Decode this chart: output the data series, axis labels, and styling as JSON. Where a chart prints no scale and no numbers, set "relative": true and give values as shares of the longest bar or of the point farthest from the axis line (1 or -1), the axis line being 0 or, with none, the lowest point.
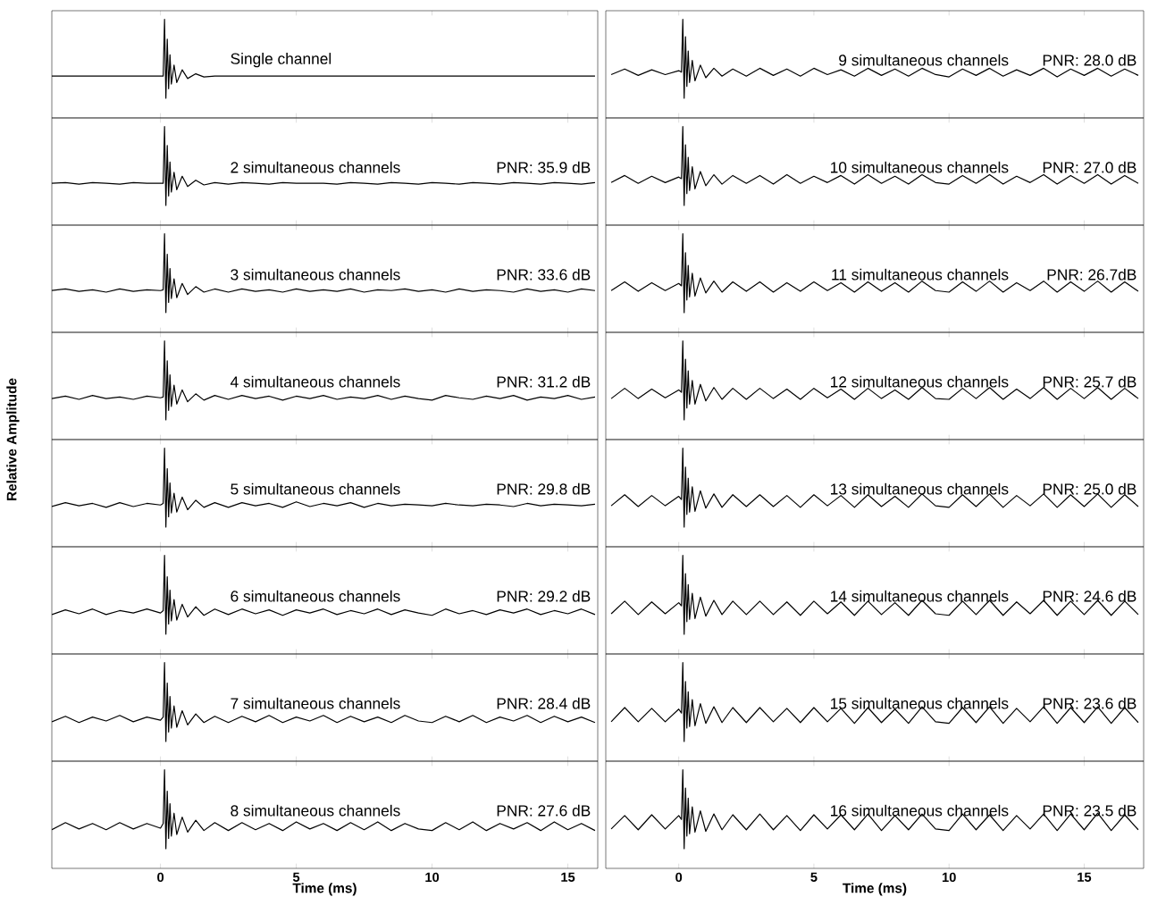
{
  "chart_data": [
    {
      "type": "line",
      "relative": true,
      "color": "#000000",
      "tick_labels": false,
      "xlim": [
        -4,
        16.1
      ],
      "xticks": [
        0,
        5,
        10,
        15
      ],
      "annotations": [
        "Single channel"
      ],
      "x": [
        -4,
        -3.5,
        -3,
        -2.5,
        -2,
        -1.5,
        -1,
        -0.5,
        0,
        0.1,
        0.15,
        0.2,
        0.25,
        0.3,
        0.35,
        0.4,
        0.5,
        0.6,
        0.8,
        1,
        1.3,
        1.6,
        2,
        2.5,
        3,
        3.5,
        4,
        4.5,
        5,
        5.5,
        6,
        6.5,
        7,
        7.5,
        8,
        8.5,
        9,
        9.5,
        10,
        10.5,
        11,
        11.5,
        12,
        12.5,
        13,
        13.5,
        14,
        14.5,
        15,
        15.5,
        16
      ],
      "values": [
        0.28,
        0.28,
        0.28,
        0.28,
        0.28,
        0.28,
        0.28,
        0.28,
        0.28,
        0.28,
        1,
        0,
        0.75,
        0.12,
        0.55,
        0.18,
        0.42,
        0.2,
        0.36,
        0.25,
        0.31,
        0.27,
        0.28,
        0.28,
        0.28,
        0.28,
        0.28,
        0.28,
        0.28,
        0.28,
        0.28,
        0.28,
        0.28,
        0.28,
        0.28,
        0.28,
        0.28,
        0.28,
        0.28,
        0.28,
        0.28,
        0.28,
        0.28,
        0.28,
        0.28,
        0.28,
        0.28,
        0.28,
        0.28,
        0.28,
        0.28
      ]
    },
    {
      "type": "line",
      "relative": true,
      "color": "#000000",
      "tick_labels": false,
      "xlim": [
        -4,
        16.1
      ],
      "xticks": [
        0,
        5,
        10,
        15
      ],
      "annotations": [
        "2 simultaneous channels",
        "PNR: 35.9 dB"
      ],
      "x": [
        -4,
        -3.5,
        -3,
        -2.5,
        -2,
        -1.5,
        -1,
        -0.5,
        0,
        0.1,
        0.15,
        0.2,
        0.25,
        0.3,
        0.35,
        0.4,
        0.5,
        0.6,
        0.8,
        1,
        1.3,
        1.6,
        2,
        2.5,
        3,
        3.5,
        4,
        4.5,
        5,
        5.5,
        6,
        6.5,
        7,
        7.5,
        8,
        8.5,
        9,
        9.5,
        10,
        10.5,
        11,
        11.5,
        12,
        12.5,
        13,
        13.5,
        14,
        14.5,
        15,
        15.5,
        16
      ],
      "values": [
        0.28,
        0.29,
        0.27,
        0.29,
        0.28,
        0.27,
        0.29,
        0.28,
        0.28,
        0.28,
        1,
        0,
        0.76,
        0.12,
        0.55,
        0.17,
        0.42,
        0.2,
        0.37,
        0.24,
        0.32,
        0.26,
        0.29,
        0.27,
        0.29,
        0.28,
        0.27,
        0.29,
        0.28,
        0.28,
        0.28,
        0.27,
        0.29,
        0.28,
        0.27,
        0.29,
        0.28,
        0.27,
        0.29,
        0.28,
        0.27,
        0.29,
        0.28,
        0.27,
        0.29,
        0.28,
        0.27,
        0.29,
        0.28,
        0.27,
        0.29
      ]
    },
    {
      "type": "line",
      "relative": true,
      "color": "#000000",
      "tick_labels": false,
      "xlim": [
        -4,
        16.1
      ],
      "xticks": [
        0,
        5,
        10,
        15
      ],
      "annotations": [
        "3 simultaneous channels",
        "PNR: 33.6 dB"
      ],
      "x": [
        -4,
        -3.5,
        -3,
        -2.5,
        -2,
        -1.5,
        -1,
        -0.5,
        0,
        0.1,
        0.15,
        0.2,
        0.25,
        0.3,
        0.35,
        0.4,
        0.5,
        0.6,
        0.8,
        1,
        1.3,
        1.6,
        2,
        2.5,
        3,
        3.5,
        4,
        4.5,
        5,
        5.5,
        6,
        6.5,
        7,
        7.5,
        8,
        8.5,
        9,
        9.5,
        10,
        10.5,
        11,
        11.5,
        12,
        12.5,
        13,
        13.5,
        14,
        14.5,
        15,
        15.5,
        16
      ],
      "values": [
        0.28,
        0.3,
        0.27,
        0.29,
        0.26,
        0.3,
        0.27,
        0.29,
        0.28,
        0.29,
        1,
        0,
        0.74,
        0.13,
        0.56,
        0.18,
        0.43,
        0.19,
        0.37,
        0.23,
        0.33,
        0.26,
        0.3,
        0.26,
        0.3,
        0.27,
        0.29,
        0.26,
        0.3,
        0.27,
        0.29,
        0.27,
        0.3,
        0.26,
        0.29,
        0.28,
        0.3,
        0.27,
        0.29,
        0.26,
        0.3,
        0.27,
        0.29,
        0.28,
        0.26,
        0.3,
        0.27,
        0.29,
        0.26,
        0.3,
        0.28
      ]
    },
    {
      "type": "line",
      "relative": true,
      "color": "#000000",
      "tick_labels": false,
      "xlim": [
        -4,
        16.1
      ],
      "xticks": [
        0,
        5,
        10,
        15
      ],
      "annotations": [
        "4 simultaneous channels",
        "PNR: 31.2 dB"
      ],
      "x": [
        -4,
        -3.5,
        -3,
        -2.5,
        -2,
        -1.5,
        -1,
        -0.5,
        0,
        0.1,
        0.15,
        0.2,
        0.25,
        0.3,
        0.35,
        0.4,
        0.5,
        0.6,
        0.8,
        1,
        1.3,
        1.6,
        2,
        2.5,
        3,
        3.5,
        4,
        4.5,
        5,
        5.5,
        6,
        6.5,
        7,
        7.5,
        8,
        8.5,
        9,
        9.5,
        10,
        10.5,
        11,
        11.5,
        12,
        12.5,
        13,
        13.5,
        14,
        14.5,
        15,
        15.5,
        16
      ],
      "values": [
        0.27,
        0.3,
        0.26,
        0.31,
        0.27,
        0.29,
        0.26,
        0.3,
        0.28,
        0.29,
        1,
        0,
        0.75,
        0.12,
        0.57,
        0.17,
        0.44,
        0.2,
        0.38,
        0.23,
        0.33,
        0.25,
        0.31,
        0.26,
        0.31,
        0.27,
        0.3,
        0.25,
        0.3,
        0.27,
        0.31,
        0.26,
        0.29,
        0.27,
        0.31,
        0.26,
        0.3,
        0.27,
        0.25,
        0.31,
        0.28,
        0.26,
        0.3,
        0.27,
        0.31,
        0.25,
        0.29,
        0.27,
        0.31,
        0.26,
        0.29
      ]
    },
    {
      "type": "line",
      "relative": true,
      "color": "#000000",
      "tick_labels": false,
      "xlim": [
        -4,
        16.1
      ],
      "xticks": [
        0,
        5,
        10,
        15
      ],
      "ylabel": "Relative Amplitude",
      "annotations": [
        "5 simultaneous channels",
        "PNR: 29.8 dB"
      ],
      "x": [
        -4,
        -3.5,
        -3,
        -2.5,
        -2,
        -1.5,
        -1,
        -0.5,
        0,
        0.1,
        0.15,
        0.2,
        0.25,
        0.3,
        0.35,
        0.4,
        0.5,
        0.6,
        0.8,
        1,
        1.3,
        1.6,
        2,
        2.5,
        3,
        3.5,
        4,
        4.5,
        5,
        5.5,
        6,
        6.5,
        7,
        7.5,
        8,
        8.5,
        9,
        9.5,
        10,
        10.5,
        11,
        11.5,
        12,
        12.5,
        13,
        13.5,
        14,
        14.5,
        15,
        15.5,
        16
      ],
      "values": [
        0.26,
        0.31,
        0.27,
        0.3,
        0.25,
        0.31,
        0.26,
        0.3,
        0.28,
        0.3,
        1,
        0,
        0.74,
        0.13,
        0.56,
        0.18,
        0.43,
        0.19,
        0.38,
        0.22,
        0.34,
        0.25,
        0.31,
        0.25,
        0.31,
        0.27,
        0.3,
        0.25,
        0.32,
        0.26,
        0.3,
        0.27,
        0.31,
        0.25,
        0.3,
        0.27,
        0.29,
        0.28,
        0.27,
        0.3,
        0.28,
        0.27,
        0.29,
        0.28,
        0.26,
        0.3,
        0.27,
        0.29,
        0.28,
        0.27,
        0.29
      ]
    },
    {
      "type": "line",
      "relative": true,
      "color": "#000000",
      "tick_labels": false,
      "xlim": [
        -4,
        16.1
      ],
      "xticks": [
        0,
        5,
        10,
        15
      ],
      "annotations": [
        "6 simultaneous channels",
        "PNR: 29.2 dB"
      ],
      "x": [
        -4,
        -3.5,
        -3,
        -2.5,
        -2,
        -1.5,
        -1,
        -0.5,
        0,
        0.1,
        0.15,
        0.2,
        0.25,
        0.3,
        0.35,
        0.4,
        0.5,
        0.6,
        0.8,
        1,
        1.3,
        1.6,
        2,
        2.5,
        3,
        3.5,
        4,
        4.5,
        5,
        5.5,
        6,
        6.5,
        7,
        7.5,
        8,
        8.5,
        9,
        9.5,
        10,
        10.5,
        11,
        11.5,
        12,
        12.5,
        13,
        13.5,
        14,
        14.5,
        15,
        15.5,
        16
      ],
      "values": [
        0.25,
        0.31,
        0.26,
        0.32,
        0.25,
        0.3,
        0.27,
        0.32,
        0.27,
        0.3,
        1,
        0,
        0.73,
        0.13,
        0.56,
        0.17,
        0.44,
        0.18,
        0.38,
        0.22,
        0.35,
        0.24,
        0.32,
        0.25,
        0.32,
        0.26,
        0.31,
        0.24,
        0.31,
        0.27,
        0.32,
        0.25,
        0.3,
        0.26,
        0.32,
        0.25,
        0.31,
        0.27,
        0.24,
        0.32,
        0.26,
        0.3,
        0.25,
        0.31,
        0.27,
        0.32,
        0.25,
        0.3,
        0.26,
        0.32,
        0.25
      ]
    },
    {
      "type": "line",
      "relative": true,
      "color": "#000000",
      "tick_labels": false,
      "xlim": [
        -4,
        16.1
      ],
      "xticks": [
        0,
        5,
        10,
        15
      ],
      "annotations": [
        "7 simultaneous channels",
        "PNR: 28.4 dB"
      ],
      "x": [
        -4,
        -3.5,
        -3,
        -2.5,
        -2,
        -1.5,
        -1,
        -0.5,
        0,
        0.1,
        0.15,
        0.2,
        0.25,
        0.3,
        0.35,
        0.4,
        0.5,
        0.6,
        0.8,
        1,
        1.3,
        1.6,
        2,
        2.5,
        3,
        3.5,
        4,
        4.5,
        5,
        5.5,
        6,
        6.5,
        7,
        7.5,
        8,
        8.5,
        9,
        9.5,
        10,
        10.5,
        11,
        11.5,
        12,
        12.5,
        13,
        13.5,
        14,
        14.5,
        15,
        15.5,
        16
      ],
      "values": [
        0.25,
        0.32,
        0.24,
        0.31,
        0.26,
        0.33,
        0.25,
        0.31,
        0.27,
        0.31,
        1,
        0,
        0.74,
        0.12,
        0.57,
        0.17,
        0.45,
        0.18,
        0.39,
        0.21,
        0.35,
        0.24,
        0.32,
        0.24,
        0.32,
        0.25,
        0.33,
        0.24,
        0.31,
        0.26,
        0.33,
        0.24,
        0.32,
        0.25,
        0.31,
        0.24,
        0.33,
        0.26,
        0.24,
        0.32,
        0.25,
        0.33,
        0.24,
        0.31,
        0.26,
        0.33,
        0.24,
        0.32,
        0.25,
        0.31,
        0.24
      ]
    },
    {
      "type": "line",
      "relative": true,
      "color": "#000000",
      "tick_labels": "x",
      "xlim": [
        -4,
        16.1
      ],
      "xticks": [
        0,
        5,
        10,
        15
      ],
      "xlabel": "Time (ms)",
      "annotations": [
        "8 simultaneous channels",
        "PNR: 27.6 dB"
      ],
      "x": [
        -4,
        -3.5,
        -3,
        -2.5,
        -2,
        -1.5,
        -1,
        -0.5,
        0,
        0.1,
        0.15,
        0.2,
        0.25,
        0.3,
        0.35,
        0.4,
        0.5,
        0.6,
        0.8,
        1,
        1.3,
        1.6,
        2,
        2.5,
        3,
        3.5,
        4,
        4.5,
        5,
        5.5,
        6,
        6.5,
        7,
        7.5,
        8,
        8.5,
        9,
        9.5,
        10,
        10.5,
        11,
        11.5,
        12,
        12.5,
        13,
        13.5,
        14,
        14.5,
        15,
        15.5,
        16
      ],
      "values": [
        0.24,
        0.33,
        0.25,
        0.32,
        0.24,
        0.33,
        0.25,
        0.32,
        0.26,
        0.32,
        1,
        0,
        0.73,
        0.13,
        0.57,
        0.16,
        0.45,
        0.18,
        0.4,
        0.21,
        0.36,
        0.23,
        0.33,
        0.23,
        0.33,
        0.24,
        0.32,
        0.23,
        0.34,
        0.25,
        0.32,
        0.23,
        0.33,
        0.24,
        0.34,
        0.23,
        0.32,
        0.25,
        0.23,
        0.33,
        0.24,
        0.34,
        0.23,
        0.32,
        0.25,
        0.33,
        0.23,
        0.34,
        0.24,
        0.32,
        0.23
      ]
    },
    {
      "type": "line",
      "relative": true,
      "color": "#000000",
      "tick_labels": false,
      "xlim": [
        -2.7,
        17.2
      ],
      "xticks": [
        0,
        5,
        10,
        15
      ],
      "annotations": [
        "9 simultaneous channels",
        "PNR: 28.0 dB"
      ],
      "x": [
        -2.5,
        -2,
        -1.5,
        -1,
        -0.5,
        0,
        0.1,
        0.15,
        0.2,
        0.25,
        0.3,
        0.35,
        0.4,
        0.5,
        0.6,
        0.8,
        1,
        1.3,
        1.6,
        2,
        2.5,
        3,
        3.5,
        4,
        4.5,
        5,
        5.5,
        6,
        6.5,
        7,
        7.5,
        8,
        8.5,
        9,
        9.5,
        10,
        10.5,
        11,
        11.5,
        12,
        12.5,
        13,
        13.5,
        14,
        14.5,
        15,
        15.5,
        16,
        16.5,
        17
      ],
      "values": [
        0.3,
        0.37,
        0.29,
        0.36,
        0.3,
        0.35,
        0.33,
        1,
        0,
        0.78,
        0.15,
        0.6,
        0.2,
        0.48,
        0.22,
        0.42,
        0.26,
        0.38,
        0.28,
        0.37,
        0.28,
        0.38,
        0.29,
        0.37,
        0.28,
        0.38,
        0.3,
        0.36,
        0.28,
        0.38,
        0.29,
        0.37,
        0.28,
        0.38,
        0.3,
        0.27,
        0.37,
        0.29,
        0.38,
        0.28,
        0.36,
        0.29,
        0.38,
        0.27,
        0.37,
        0.29,
        0.38,
        0.28,
        0.37,
        0.29
      ]
    },
    {
      "type": "line",
      "relative": true,
      "color": "#000000",
      "tick_labels": false,
      "xlim": [
        -2.7,
        17.2
      ],
      "xticks": [
        0,
        5,
        10,
        15
      ],
      "annotations": [
        "10 simultaneous channels",
        "PNR: 27.0 dB"
      ],
      "x": [
        -2.5,
        -2,
        -1.5,
        -1,
        -0.5,
        0,
        0.1,
        0.15,
        0.2,
        0.25,
        0.3,
        0.35,
        0.4,
        0.5,
        0.6,
        0.8,
        1,
        1.3,
        1.6,
        2,
        2.5,
        3,
        3.5,
        4,
        4.5,
        5,
        5.5,
        6,
        6.5,
        7,
        7.5,
        8,
        8.5,
        9,
        9.5,
        10,
        10.5,
        11,
        11.5,
        12,
        12.5,
        13,
        13.5,
        14,
        14.5,
        15,
        15.5,
        16,
        16.5,
        17
      ],
      "values": [
        0.29,
        0.38,
        0.28,
        0.37,
        0.29,
        0.36,
        0.34,
        1,
        0,
        0.77,
        0.15,
        0.61,
        0.19,
        0.49,
        0.21,
        0.43,
        0.25,
        0.39,
        0.27,
        0.38,
        0.28,
        0.38,
        0.27,
        0.39,
        0.28,
        0.37,
        0.29,
        0.38,
        0.27,
        0.39,
        0.28,
        0.37,
        0.27,
        0.39,
        0.29,
        0.27,
        0.38,
        0.28,
        0.39,
        0.27,
        0.37,
        0.29,
        0.39,
        0.27,
        0.38,
        0.28,
        0.39,
        0.27,
        0.38,
        0.28
      ]
    },
    {
      "type": "line",
      "relative": true,
      "color": "#000000",
      "tick_labels": false,
      "xlim": [
        -2.7,
        17.2
      ],
      "xticks": [
        0,
        5,
        10,
        15
      ],
      "annotations": [
        "11 simultaneous channels",
        "PNR: 26.7dB"
      ],
      "x": [
        -2.5,
        -2,
        -1.5,
        -1,
        -0.5,
        0,
        0.1,
        0.15,
        0.2,
        0.25,
        0.3,
        0.35,
        0.4,
        0.5,
        0.6,
        0.8,
        1,
        1.3,
        1.6,
        2,
        2.5,
        3,
        3.5,
        4,
        4.5,
        5,
        5.5,
        6,
        6.5,
        7,
        7.5,
        8,
        8.5,
        9,
        9.5,
        10,
        10.5,
        11,
        11.5,
        12,
        12.5,
        13,
        13.5,
        14,
        14.5,
        15,
        15.5,
        16,
        16.5,
        17
      ],
      "values": [
        0.28,
        0.39,
        0.27,
        0.38,
        0.28,
        0.37,
        0.34,
        1,
        0,
        0.76,
        0.16,
        0.6,
        0.2,
        0.5,
        0.21,
        0.44,
        0.25,
        0.4,
        0.26,
        0.39,
        0.27,
        0.39,
        0.26,
        0.38,
        0.27,
        0.39,
        0.28,
        0.38,
        0.26,
        0.39,
        0.27,
        0.38,
        0.26,
        0.4,
        0.28,
        0.26,
        0.39,
        0.27,
        0.4,
        0.26,
        0.38,
        0.28,
        0.4,
        0.26,
        0.39,
        0.27,
        0.4,
        0.26,
        0.39,
        0.27
      ]
    },
    {
      "type": "line",
      "relative": true,
      "color": "#000000",
      "tick_labels": false,
      "xlim": [
        -2.7,
        17.2
      ],
      "xticks": [
        0,
        5,
        10,
        15
      ],
      "annotations": [
        "12 simultaneous channels",
        "PNR: 25.7 dB"
      ],
      "x": [
        -2.5,
        -2,
        -1.5,
        -1,
        -0.5,
        0,
        0.1,
        0.15,
        0.2,
        0.25,
        0.3,
        0.35,
        0.4,
        0.5,
        0.6,
        0.8,
        1,
        1.3,
        1.6,
        2,
        2.5,
        3,
        3.5,
        4,
        4.5,
        5,
        5.5,
        6,
        6.5,
        7,
        7.5,
        8,
        8.5,
        9,
        9.5,
        10,
        10.5,
        11,
        11.5,
        12,
        12.5,
        13,
        13.5,
        14,
        14.5,
        15,
        15.5,
        16,
        16.5,
        17
      ],
      "values": [
        0.27,
        0.4,
        0.27,
        0.39,
        0.28,
        0.38,
        0.35,
        1,
        0,
        0.77,
        0.15,
        0.62,
        0.2,
        0.5,
        0.2,
        0.45,
        0.24,
        0.41,
        0.26,
        0.4,
        0.26,
        0.4,
        0.27,
        0.39,
        0.26,
        0.4,
        0.28,
        0.39,
        0.26,
        0.4,
        0.27,
        0.38,
        0.26,
        0.41,
        0.27,
        0.26,
        0.4,
        0.27,
        0.41,
        0.26,
        0.39,
        0.27,
        0.41,
        0.26,
        0.4,
        0.27,
        0.41,
        0.26,
        0.4,
        0.27
      ]
    },
    {
      "type": "line",
      "relative": true,
      "color": "#000000",
      "tick_labels": false,
      "xlim": [
        -2.7,
        17.2
      ],
      "xticks": [
        0,
        5,
        10,
        15
      ],
      "annotations": [
        "13 simultaneous channels",
        "PNR: 25.0 dB"
      ],
      "x": [
        -2.5,
        -2,
        -1.5,
        -1,
        -0.5,
        0,
        0.1,
        0.15,
        0.2,
        0.25,
        0.3,
        0.35,
        0.4,
        0.5,
        0.6,
        0.8,
        1,
        1.3,
        1.6,
        2,
        2.5,
        3,
        3.5,
        4,
        4.5,
        5,
        5.5,
        6,
        6.5,
        7,
        7.5,
        8,
        8.5,
        9,
        9.5,
        10,
        10.5,
        11,
        11.5,
        12,
        12.5,
        13,
        13.5,
        14,
        14.5,
        15,
        15.5,
        16,
        16.5,
        17
      ],
      "values": [
        0.27,
        0.41,
        0.26,
        0.4,
        0.27,
        0.39,
        0.35,
        1,
        0,
        0.76,
        0.16,
        0.62,
        0.19,
        0.51,
        0.2,
        0.46,
        0.24,
        0.42,
        0.25,
        0.41,
        0.26,
        0.41,
        0.26,
        0.4,
        0.25,
        0.41,
        0.27,
        0.4,
        0.25,
        0.41,
        0.26,
        0.39,
        0.25,
        0.42,
        0.27,
        0.25,
        0.41,
        0.26,
        0.42,
        0.25,
        0.4,
        0.27,
        0.42,
        0.25,
        0.41,
        0.26,
        0.42,
        0.25,
        0.41,
        0.26
      ]
    },
    {
      "type": "line",
      "relative": true,
      "color": "#000000",
      "tick_labels": false,
      "xlim": [
        -2.7,
        17.2
      ],
      "xticks": [
        0,
        5,
        10,
        15
      ],
      "annotations": [
        "14 simultaneous channels",
        "PNR: 24.6 dB"
      ],
      "x": [
        -2.5,
        -2,
        -1.5,
        -1,
        -0.5,
        0,
        0.1,
        0.15,
        0.2,
        0.25,
        0.3,
        0.35,
        0.4,
        0.5,
        0.6,
        0.8,
        1,
        1.3,
        1.6,
        2,
        2.5,
        3,
        3.5,
        4,
        4.5,
        5,
        5.5,
        6,
        6.5,
        7,
        7.5,
        8,
        8.5,
        9,
        9.5,
        10,
        10.5,
        11,
        11.5,
        12,
        12.5,
        13,
        13.5,
        14,
        14.5,
        15,
        15.5,
        16,
        16.5,
        17
      ],
      "values": [
        0.26,
        0.42,
        0.25,
        0.41,
        0.26,
        0.4,
        0.36,
        1,
        0,
        0.77,
        0.16,
        0.63,
        0.19,
        0.52,
        0.2,
        0.47,
        0.23,
        0.43,
        0.25,
        0.42,
        0.25,
        0.42,
        0.25,
        0.41,
        0.24,
        0.42,
        0.26,
        0.41,
        0.24,
        0.42,
        0.25,
        0.4,
        0.24,
        0.43,
        0.26,
        0.24,
        0.42,
        0.25,
        0.43,
        0.24,
        0.41,
        0.26,
        0.43,
        0.24,
        0.42,
        0.25,
        0.43,
        0.24,
        0.42,
        0.25
      ]
    },
    {
      "type": "line",
      "relative": true,
      "color": "#000000",
      "tick_labels": false,
      "xlim": [
        -2.7,
        17.2
      ],
      "xticks": [
        0,
        5,
        10,
        15
      ],
      "annotations": [
        "15 simultaneous channels",
        "PNR: 23.6 dB"
      ],
      "x": [
        -2.5,
        -2,
        -1.5,
        -1,
        -0.5,
        0,
        0.1,
        0.15,
        0.2,
        0.25,
        0.3,
        0.35,
        0.4,
        0.5,
        0.6,
        0.8,
        1,
        1.3,
        1.6,
        2,
        2.5,
        3,
        3.5,
        4,
        4.5,
        5,
        5.5,
        6,
        6.5,
        7,
        7.5,
        8,
        8.5,
        9,
        9.5,
        10,
        10.5,
        11,
        11.5,
        12,
        12.5,
        13,
        13.5,
        14,
        14.5,
        15,
        15.5,
        16,
        16.5,
        17
      ],
      "values": [
        0.25,
        0.43,
        0.25,
        0.42,
        0.25,
        0.41,
        0.36,
        1,
        0,
        0.76,
        0.17,
        0.63,
        0.19,
        0.53,
        0.2,
        0.48,
        0.23,
        0.44,
        0.24,
        0.43,
        0.24,
        0.43,
        0.25,
        0.42,
        0.24,
        0.43,
        0.25,
        0.42,
        0.23,
        0.43,
        0.24,
        0.41,
        0.23,
        0.44,
        0.25,
        0.23,
        0.43,
        0.24,
        0.44,
        0.23,
        0.42,
        0.25,
        0.44,
        0.23,
        0.43,
        0.24,
        0.44,
        0.23,
        0.43,
        0.24
      ]
    },
    {
      "type": "line",
      "relative": true,
      "color": "#000000",
      "tick_labels": "x",
      "xlim": [
        -2.7,
        17.2
      ],
      "xticks": [
        0,
        5,
        10,
        15
      ],
      "xlabel": "Time (ms)",
      "annotations": [
        "16 simultaneous channels",
        "PNR: 23.5 dB"
      ],
      "x": [
        -2.5,
        -2,
        -1.5,
        -1,
        -0.5,
        0,
        0.1,
        0.15,
        0.2,
        0.25,
        0.3,
        0.35,
        0.4,
        0.5,
        0.6,
        0.8,
        1,
        1.3,
        1.6,
        2,
        2.5,
        3,
        3.5,
        4,
        4.5,
        5,
        5.5,
        6,
        6.5,
        7,
        7.5,
        8,
        8.5,
        9,
        9.5,
        10,
        10.5,
        11,
        11.5,
        12,
        12.5,
        13,
        13.5,
        14,
        14.5,
        15,
        15.5,
        16,
        16.5,
        17
      ],
      "values": [
        0.25,
        0.42,
        0.24,
        0.43,
        0.25,
        0.42,
        0.37,
        1,
        0,
        0.77,
        0.16,
        0.64,
        0.19,
        0.53,
        0.21,
        0.48,
        0.22,
        0.44,
        0.24,
        0.43,
        0.24,
        0.44,
        0.24,
        0.42,
        0.23,
        0.43,
        0.25,
        0.43,
        0.24,
        0.44,
        0.23,
        0.42,
        0.24,
        0.44,
        0.25,
        0.23,
        0.44,
        0.24,
        0.43,
        0.23,
        0.42,
        0.25,
        0.44,
        0.23,
        0.44,
        0.24,
        0.45,
        0.23,
        0.43,
        0.24
      ]
    }
  ]
}
